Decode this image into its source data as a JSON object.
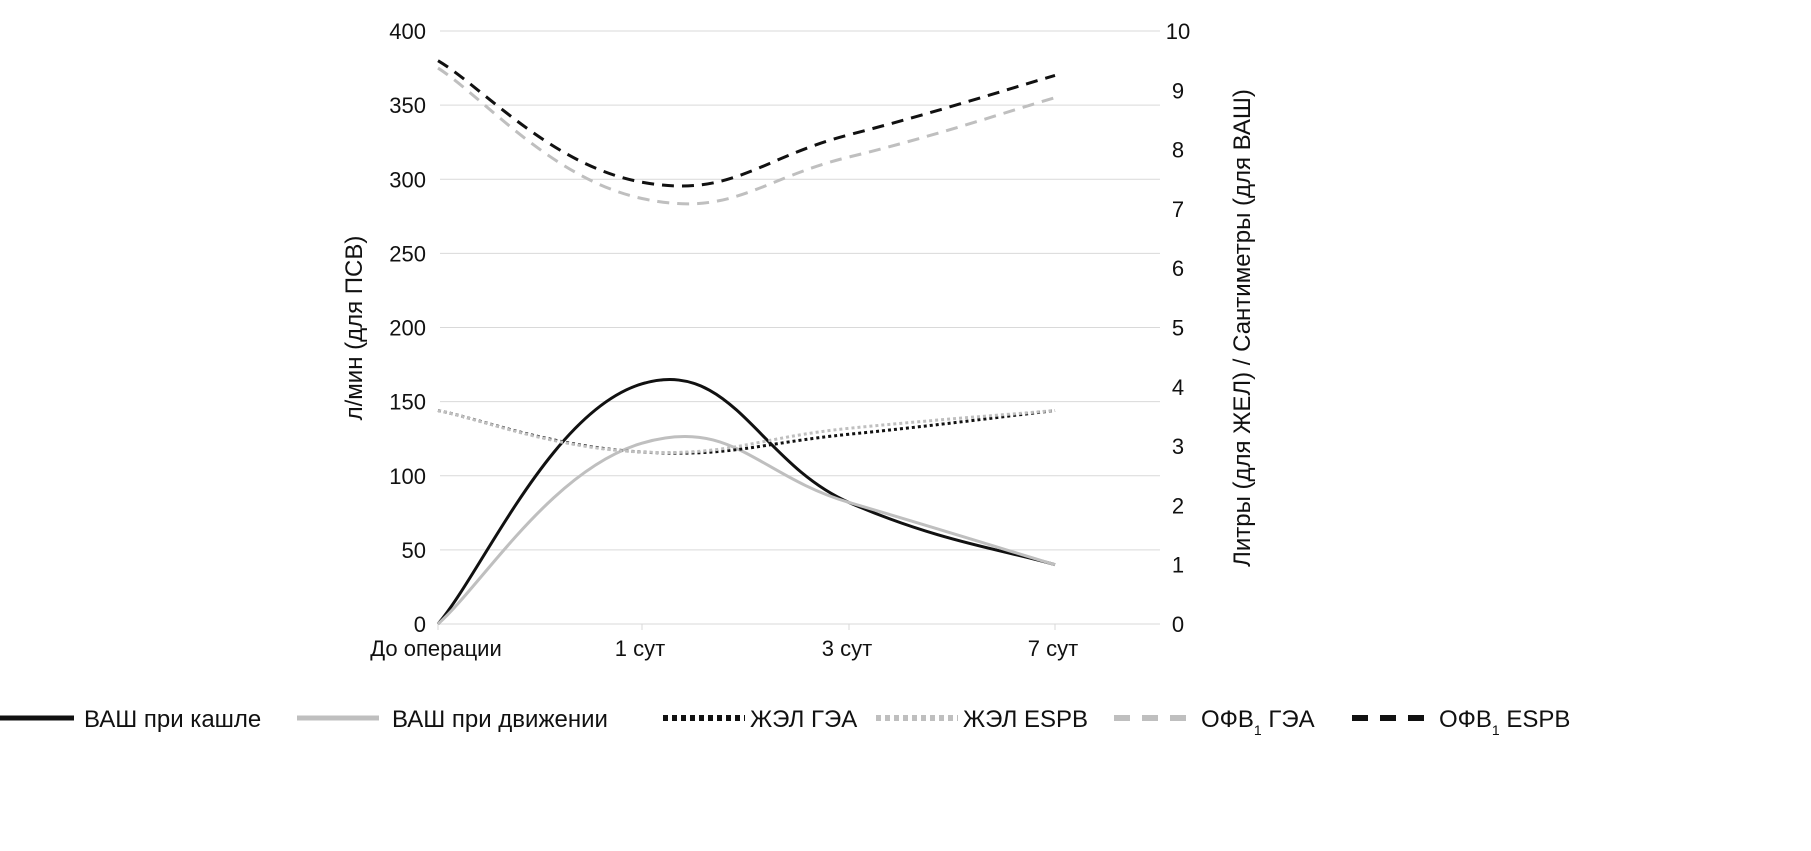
{
  "chart_data": {
    "type": "line",
    "title": "",
    "categories": [
      "До операции",
      "1 сут",
      "3 сут",
      "7 сут"
    ],
    "y_left": {
      "label": "л/мин (для ПСВ)",
      "ticks": [
        "0",
        "50",
        "100",
        "150",
        "200",
        "250",
        "300",
        "350",
        "400"
      ],
      "ylim": [
        0,
        400
      ]
    },
    "y_right": {
      "label": "Литры (для ЖЕЛ) /  Сантиметры (для ВАШ)",
      "ticks": [
        "0",
        "1",
        "2",
        "3",
        "4",
        "5",
        "6",
        "7",
        "8",
        "9",
        "10"
      ],
      "ylim": [
        0,
        10
      ]
    },
    "grid": true,
    "legend_position": "bottom",
    "series": [
      {
        "name": "ВАШ при кашле",
        "axis": "right",
        "values": [
          0,
          4.05,
          2.05,
          1.0
        ],
        "color": "#111111",
        "style": "solid"
      },
      {
        "name": "ВАШ при движении",
        "axis": "right",
        "values": [
          0,
          3.05,
          2.05,
          1.0
        ],
        "color": "#bfbfbf",
        "style": "solid"
      },
      {
        "name": "ЖЭЛ ГЭА",
        "axis": "right",
        "values": [
          3.6,
          2.9,
          3.2,
          3.6
        ],
        "color": "#111111",
        "style": "dotted"
      },
      {
        "name": "ЖЭЛ ESPB",
        "axis": "right",
        "values": [
          3.6,
          2.9,
          3.3,
          3.6
        ],
        "color": "#bfbfbf",
        "style": "dotted"
      },
      {
        "name": "ОФВ",
        "name_sub": "1",
        "name_suffix": " ГЭА",
        "axis": "left",
        "values": [
          375,
          287,
          315,
          355
        ],
        "color": "#bfbfbf",
        "style": "dashed"
      },
      {
        "name": "ОФВ",
        "name_sub": "1",
        "name_suffix": " ESPB",
        "axis": "left",
        "values": [
          380,
          298,
          330,
          370
        ],
        "color": "#111111",
        "style": "dashed"
      }
    ]
  }
}
